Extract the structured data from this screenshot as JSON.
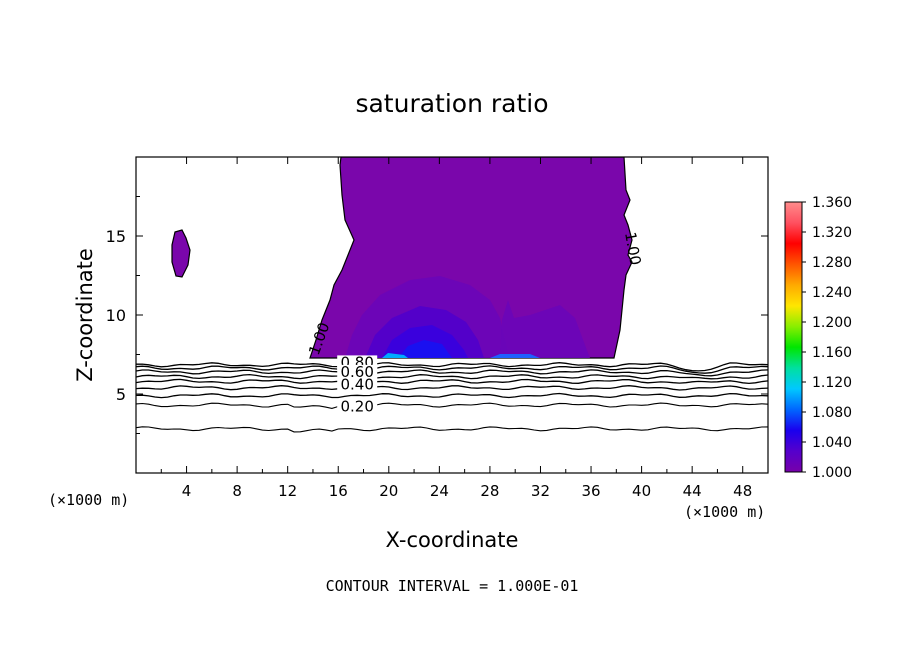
{
  "chart_data": {
    "type": "filled-contour",
    "title": "saturation ratio",
    "xlabel": "X-coordinate",
    "ylabel": "Z-coordinate",
    "x_unit_left": "(×1000 m)",
    "x_unit_right": "(×1000 m)",
    "xlim": [
      0,
      50
    ],
    "ylim": [
      0,
      20
    ],
    "x_ticks": [
      4,
      8,
      12,
      16,
      20,
      24,
      28,
      32,
      36,
      40,
      44,
      48
    ],
    "y_ticks": [
      5,
      10,
      15
    ],
    "contour_interval_text": "CONTOUR INTERVAL = 1.000E-01",
    "colorbar": {
      "ticks": [
        "1.360",
        "1.320",
        "1.280",
        "1.240",
        "1.200",
        "1.160",
        "1.120",
        "1.080",
        "1.040",
        "1.000"
      ],
      "min": 1.0,
      "max": 1.36,
      "colors": [
        "#7700aa",
        "#5500cc",
        "#1a00ee",
        "#0066ff",
        "#00c8ff",
        "#00e0a0",
        "#00e600",
        "#88ee00",
        "#ffe600",
        "#ffaa00",
        "#ff5500",
        "#ff0000",
        "#ff5060",
        "#ff8c8c"
      ]
    },
    "contour_labels": [
      {
        "text": "1.00",
        "x": 14.5,
        "y": 8.5
      },
      {
        "text": "1.00",
        "x": 39.3,
        "y": 14.2
      },
      {
        "text": "0.80",
        "x": 17.5,
        "y": 7.0
      },
      {
        "text": "0.60",
        "x": 17.5,
        "y": 6.4
      },
      {
        "text": "0.40",
        "x": 17.5,
        "y": 5.6
      },
      {
        "text": "0.20",
        "x": 17.5,
        "y": 4.2
      }
    ],
    "supersaturated_region_color": "#7a06ab",
    "contour_levels_below_one": [
      0.1,
      0.2,
      0.3,
      0.4,
      0.5,
      0.6,
      0.7,
      0.8,
      0.9
    ]
  }
}
